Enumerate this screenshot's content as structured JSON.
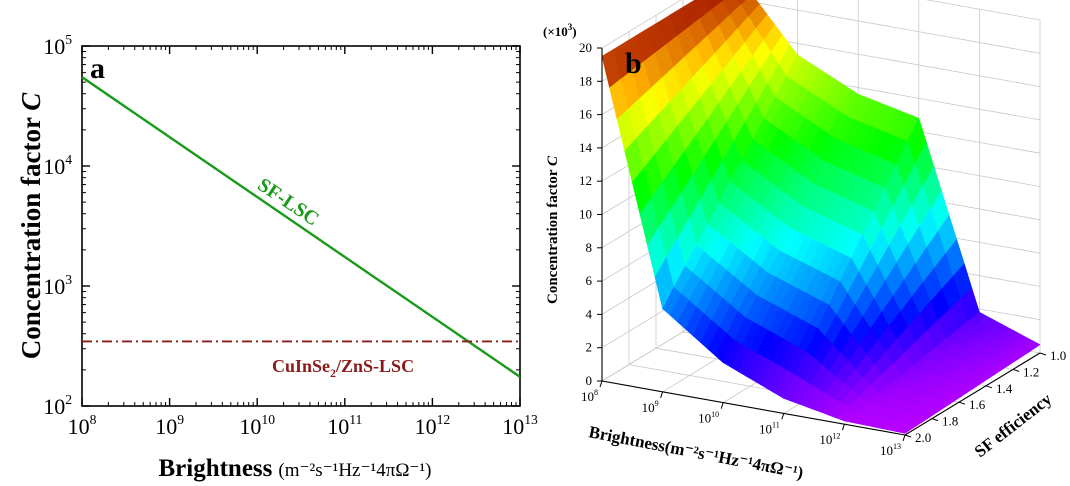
{
  "panels": {
    "a": {
      "letter": "a",
      "ylabel": "Concentration factor",
      "ylabel_italic": "C",
      "xlabel_main": "Brightness",
      "xlabel_unit": "(m⁻²s⁻¹Hz⁻¹4πΩ⁻¹)",
      "x_ticks": [
        {
          "base": "10",
          "exp": "8"
        },
        {
          "base": "10",
          "exp": "9"
        },
        {
          "base": "10",
          "exp": "10"
        },
        {
          "base": "10",
          "exp": "11"
        },
        {
          "base": "10",
          "exp": "12"
        },
        {
          "base": "10",
          "exp": "13"
        }
      ],
      "y_ticks": [
        {
          "base": "10",
          "exp": "2"
        },
        {
          "base": "10",
          "exp": "3"
        },
        {
          "base": "10",
          "exp": "4"
        },
        {
          "base": "10",
          "exp": "5"
        }
      ],
      "label_sf": "SF-LSC",
      "label_ref_part1": "CuInSe",
      "label_ref_sub": "2",
      "label_ref_part2": "/ZnS-LSC",
      "colors": {
        "sf": "#1a9a1a",
        "ref": "#8b1a1a"
      }
    },
    "b": {
      "letter": "b",
      "multiplier_text": "(×10",
      "multiplier_exp": "3",
      "multiplier_close": ")",
      "ylabel": "Concentration factor",
      "ylabel_italic": "C",
      "xlabel": "Brightness(m⁻²s⁻¹Hz⁻¹4πΩ⁻¹)",
      "zlabel": "SF efficiency",
      "z_ticks": [
        "0",
        "2",
        "4",
        "6",
        "8",
        "10",
        "12",
        "14",
        "16",
        "18",
        "20"
      ],
      "x_ticks": [
        {
          "base": "10",
          "exp": "8"
        },
        {
          "base": "10",
          "exp": "9"
        },
        {
          "base": "10",
          "exp": "10"
        },
        {
          "base": "10",
          "exp": "11"
        },
        {
          "base": "10",
          "exp": "12"
        },
        {
          "base": "10",
          "exp": "13"
        }
      ],
      "eff_ticks": [
        "1.0",
        "1.2",
        "1.4",
        "1.6",
        "1.8",
        "2.0"
      ]
    }
  },
  "chart_data": [
    {
      "type": "line",
      "title": "",
      "xlabel": "Brightness (m⁻²s⁻¹Hz⁻¹4πΩ⁻¹)",
      "ylabel": "Concentration factor C",
      "xscale": "log",
      "yscale": "log",
      "xlim": [
        100000000.0,
        10000000000000.0
      ],
      "ylim": [
        100,
        100000
      ],
      "series": [
        {
          "name": "SF-LSC",
          "x": [
            100000000.0,
            10000000000000.0
          ],
          "y": [
            55000,
            175
          ]
        },
        {
          "name": "CuInSe2/ZnS-LSC",
          "x": [
            100000000.0,
            10000000000000.0
          ],
          "y": [
            345,
            345
          ]
        }
      ]
    },
    {
      "type": "surface",
      "title": "",
      "xlabel": "Brightness(m⁻²s⁻¹Hz⁻¹4πΩ⁻¹)",
      "ylabel": "SF efficiency",
      "zlabel": "Concentration factor C (×10³)",
      "x": [
        100000000.0,
        1000000000.0,
        10000000000.0,
        100000000000.0,
        1000000000000.0,
        10000000000000.0
      ],
      "y": [
        1.0,
        1.2,
        1.4,
        1.6,
        1.8,
        2.0
      ],
      "zlim": [
        0,
        20
      ],
      "z_at_eff_1_0": [
        19.5,
        15.3,
        13.6,
        12.8,
        1.8,
        0.5
      ],
      "z_at_eff_2_0": [
        19.5,
        5.0,
        2.4,
        0.9,
        0.2,
        0.1
      ]
    }
  ]
}
